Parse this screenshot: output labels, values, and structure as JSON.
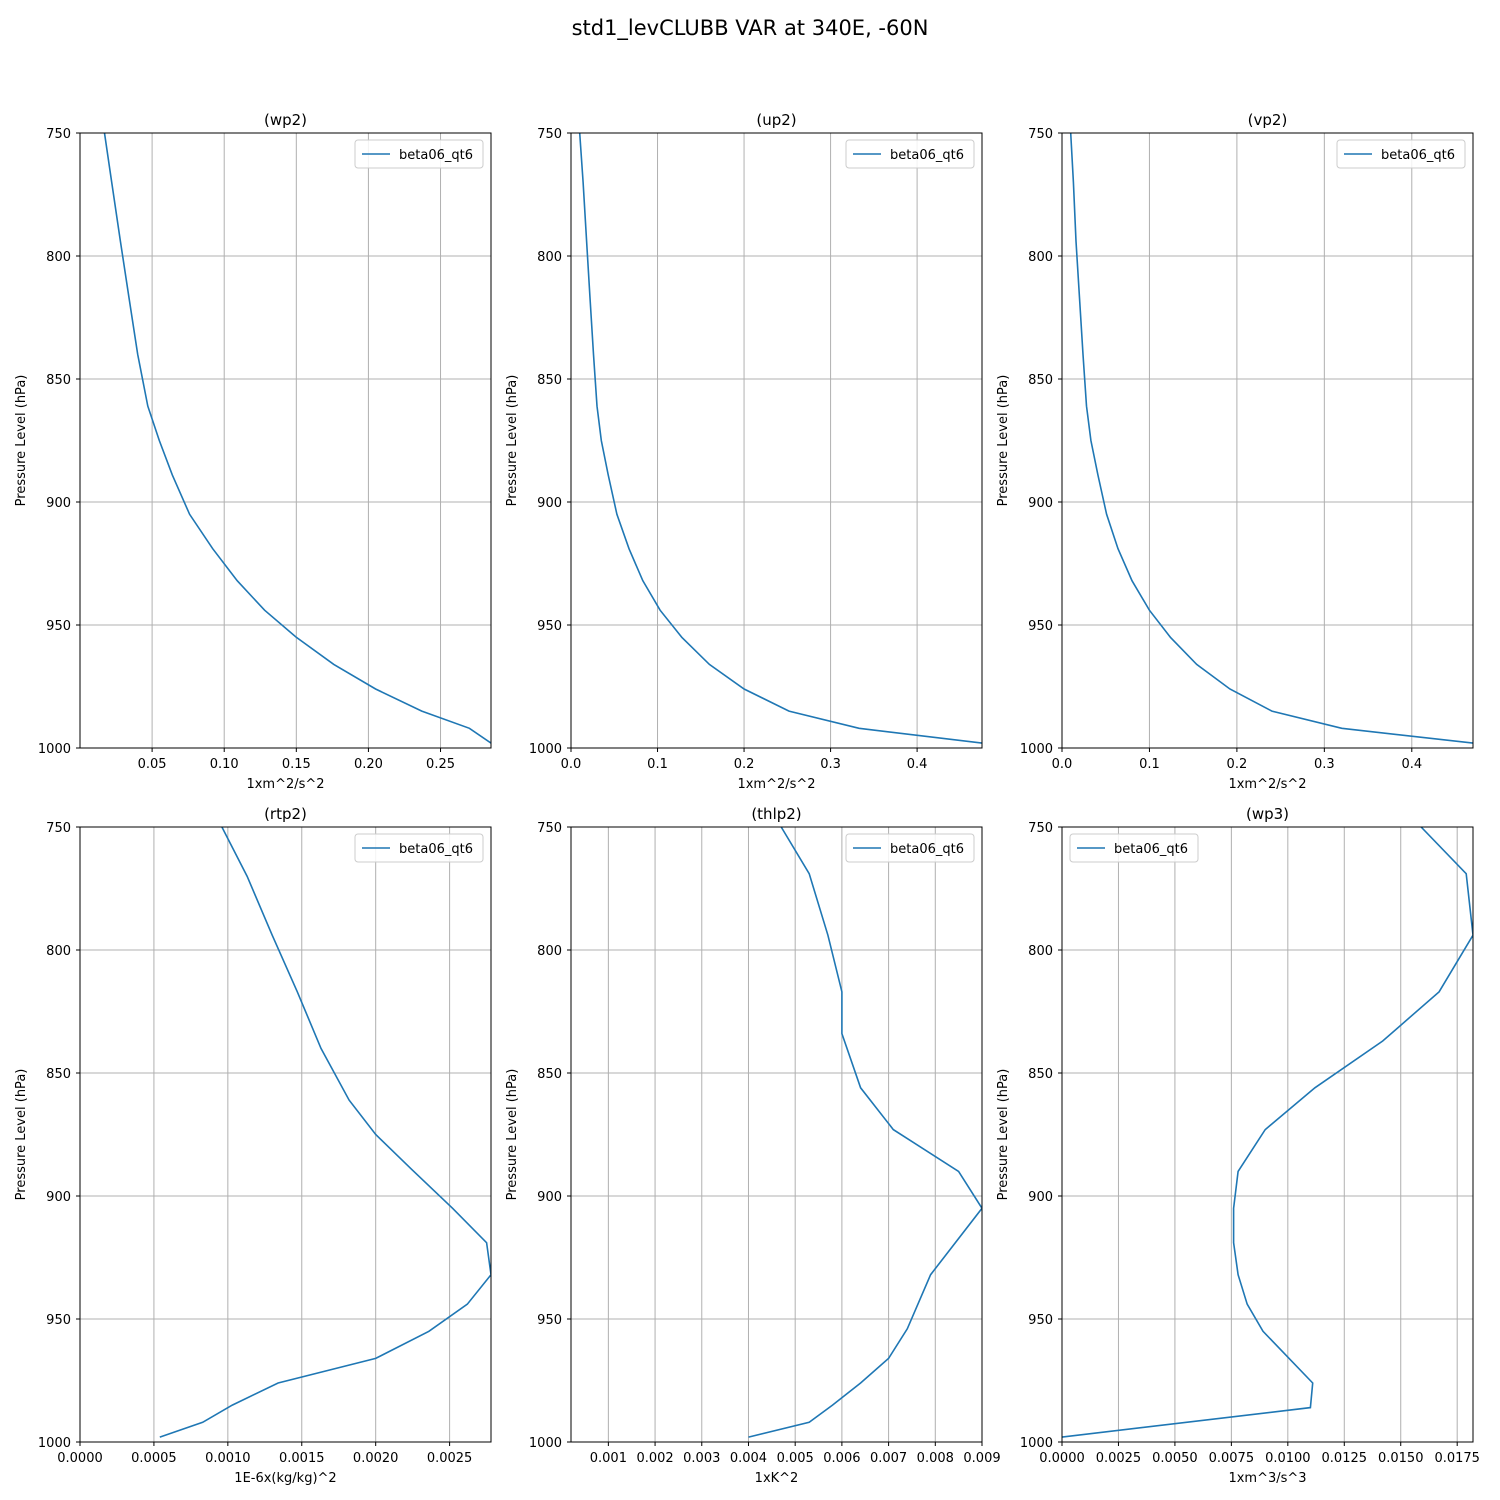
{
  "figure": {
    "title": "std1_levCLUBB VAR at 340E, -60N"
  },
  "style": {
    "line_color": "#1f77b4",
    "grid_color": "#b0b0b0"
  },
  "chart_data": [
    {
      "type": "line",
      "title": "(wp2)",
      "xlabel": "1xm^2/s^2",
      "ylabel": "Pressure Level (hPa)",
      "xlim": [
        0.0,
        0.285
      ],
      "ylim": [
        1000,
        750
      ],
      "xticks": [
        0.05,
        0.1,
        0.15,
        0.2,
        0.25
      ],
      "xtick_labels": [
        "0.05",
        "0.10",
        "0.15",
        "0.20",
        "0.25"
      ],
      "yticks": [
        750,
        800,
        850,
        900,
        950,
        1000
      ],
      "ytick_labels": [
        "750",
        "800",
        "850",
        "900",
        "950",
        "1000"
      ],
      "grid": true,
      "legend_position": "upper-right",
      "series": [
        {
          "name": "beta06_qt6",
          "x": [
            0.017,
            0.022,
            0.028,
            0.034,
            0.04,
            0.047,
            0.055,
            0.064,
            0.076,
            0.092,
            0.109,
            0.128,
            0.15,
            0.176,
            0.205,
            0.237,
            0.27,
            0.285
          ],
          "y": [
            750,
            770,
            794,
            817,
            840,
            861,
            875,
            889,
            905,
            919,
            932,
            944,
            955,
            966,
            976,
            985,
            992,
            998
          ]
        }
      ]
    },
    {
      "type": "line",
      "title": "(up2)",
      "xlabel": "1xm^2/s^2",
      "ylabel": "Pressure Level (hPa)",
      "xlim": [
        0.0,
        0.475
      ],
      "ylim": [
        1000,
        750
      ],
      "xticks": [
        0.0,
        0.1,
        0.2,
        0.3,
        0.4
      ],
      "xtick_labels": [
        "0.0",
        "0.1",
        "0.2",
        "0.3",
        "0.4"
      ],
      "yticks": [
        750,
        800,
        850,
        900,
        950,
        1000
      ],
      "ytick_labels": [
        "750",
        "800",
        "850",
        "900",
        "950",
        "1000"
      ],
      "grid": true,
      "legend_position": "upper-right",
      "series": [
        {
          "name": "beta06_qt6",
          "x": [
            0.01,
            0.014,
            0.018,
            0.022,
            0.026,
            0.03,
            0.035,
            0.043,
            0.053,
            0.067,
            0.083,
            0.103,
            0.128,
            0.16,
            0.2,
            0.252,
            0.333,
            0.475
          ],
          "y": [
            750,
            770,
            794,
            817,
            840,
            861,
            875,
            889,
            905,
            919,
            932,
            944,
            955,
            966,
            976,
            985,
            992,
            998
          ]
        }
      ]
    },
    {
      "type": "line",
      "title": "(vp2)",
      "xlabel": "1xm^2/s^2",
      "ylabel": "Pressure Level (hPa)",
      "xlim": [
        0.0,
        0.47
      ],
      "ylim": [
        1000,
        750
      ],
      "xticks": [
        0.0,
        0.1,
        0.2,
        0.3,
        0.4
      ],
      "xtick_labels": [
        "0.0",
        "0.1",
        "0.2",
        "0.3",
        "0.4"
      ],
      "yticks": [
        750,
        800,
        850,
        900,
        950,
        1000
      ],
      "ytick_labels": [
        "750",
        "800",
        "850",
        "900",
        "950",
        "1000"
      ],
      "grid": true,
      "legend_position": "upper-right",
      "series": [
        {
          "name": "beta06_qt6",
          "x": [
            0.01,
            0.013,
            0.016,
            0.02,
            0.024,
            0.028,
            0.033,
            0.041,
            0.051,
            0.064,
            0.08,
            0.1,
            0.124,
            0.154,
            0.192,
            0.24,
            0.32,
            0.47
          ],
          "y": [
            750,
            770,
            794,
            817,
            840,
            861,
            875,
            889,
            905,
            919,
            932,
            944,
            955,
            966,
            976,
            985,
            992,
            998
          ]
        }
      ]
    },
    {
      "type": "line",
      "title": "(rtp2)",
      "xlabel": "1E-6x(kg/kg)^2",
      "ylabel": "Pressure Level (hPa)",
      "xlim": [
        0.0,
        0.00278
      ],
      "ylim": [
        1000,
        750
      ],
      "xticks": [
        0.0,
        0.0005,
        0.001,
        0.0015,
        0.002,
        0.0025
      ],
      "xtick_labels": [
        "0.0000",
        "0.0005",
        "0.0010",
        "0.0015",
        "0.0020",
        "0.0025"
      ],
      "yticks": [
        750,
        800,
        850,
        900,
        950,
        1000
      ],
      "ytick_labels": [
        "750",
        "800",
        "850",
        "900",
        "950",
        "1000"
      ],
      "grid": true,
      "legend_position": "upper-right",
      "series": [
        {
          "name": "beta06_qt6",
          "x": [
            0.00096,
            0.00113,
            0.0013,
            0.00147,
            0.00163,
            0.00182,
            0.002,
            0.00224,
            0.00252,
            0.00275,
            0.00278,
            0.00262,
            0.00236,
            0.002,
            0.00134,
            0.00103,
            0.00083,
            0.00054
          ],
          "y": [
            750,
            770,
            794,
            817,
            840,
            861,
            875,
            889,
            905,
            919,
            932,
            944,
            955,
            966,
            976,
            985,
            992,
            998
          ]
        }
      ]
    },
    {
      "type": "line",
      "title": "(thlp2)",
      "xlabel": "1xK^2",
      "ylabel": "Pressure Level (hPa)",
      "xlim": [
        0.0002,
        0.009
      ],
      "ylim": [
        1000,
        750
      ],
      "xticks": [
        0.001,
        0.002,
        0.003,
        0.004,
        0.005,
        0.006,
        0.007,
        0.008,
        0.009
      ],
      "xtick_labels": [
        "0.001",
        "0.002",
        "0.003",
        "0.004",
        "0.005",
        "0.006",
        "0.007",
        "0.008",
        "0.009"
      ],
      "yticks": [
        750,
        800,
        850,
        900,
        950,
        1000
      ],
      "ytick_labels": [
        "750",
        "800",
        "850",
        "900",
        "950",
        "1000"
      ],
      "grid": true,
      "legend_position": "upper-right",
      "series": [
        {
          "name": "beta06_qt6",
          "x": [
            0.0047,
            0.0053,
            0.0057,
            0.006,
            0.006,
            0.0064,
            0.0071,
            0.0085,
            0.009,
            0.0079,
            0.0074,
            0.007,
            0.0064,
            0.0058,
            0.0053,
            0.004
          ],
          "y": [
            750,
            769,
            794,
            817,
            834,
            856,
            873,
            890,
            905,
            932,
            954,
            966,
            976,
            985,
            992,
            998
          ]
        }
      ]
    },
    {
      "type": "line",
      "title": "(wp3)",
      "xlabel": "1xm^3/s^3",
      "ylabel": "Pressure Level (hPa)",
      "xlim": [
        0.0,
        0.0182
      ],
      "ylim": [
        1000,
        750
      ],
      "xticks": [
        0.0,
        0.0025,
        0.005,
        0.0075,
        0.01,
        0.0125,
        0.015,
        0.0175
      ],
      "xtick_labels": [
        "0.0000",
        "0.0025",
        "0.0050",
        "0.0075",
        "0.0100",
        "0.0125",
        "0.0150",
        "0.0175"
      ],
      "yticks": [
        750,
        800,
        850,
        900,
        950,
        1000
      ],
      "ytick_labels": [
        "750",
        "800",
        "850",
        "900",
        "950",
        "1000"
      ],
      "grid": true,
      "legend_position": "upper-left",
      "series": [
        {
          "name": "beta06_qt6",
          "x": [
            0.0159,
            0.0179,
            0.0182,
            0.0167,
            0.0142,
            0.0112,
            0.009,
            0.0078,
            0.0076,
            0.0076,
            0.0078,
            0.0082,
            0.0089,
            0.0111,
            0.011,
            0.0
          ],
          "y": [
            750,
            769,
            794,
            817,
            837,
            856,
            873,
            890,
            905,
            919,
            932,
            944,
            955,
            976,
            986,
            998
          ]
        }
      ]
    }
  ]
}
